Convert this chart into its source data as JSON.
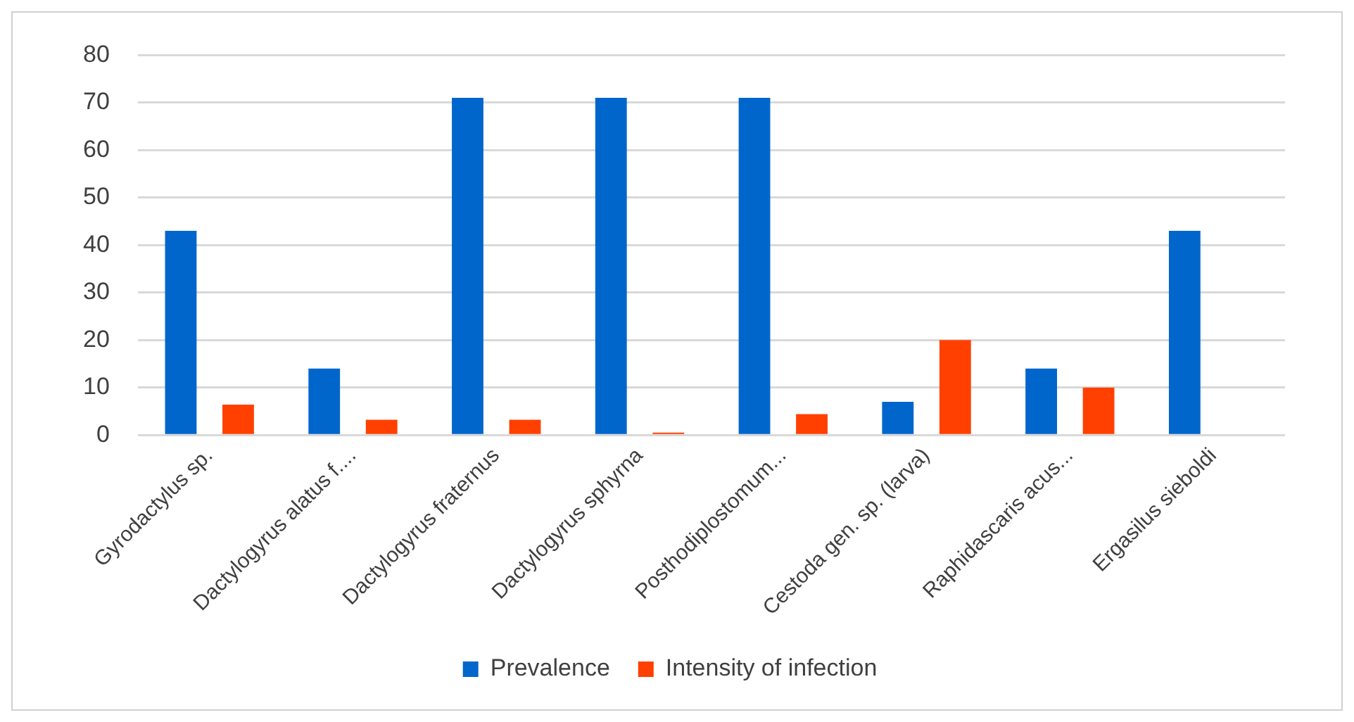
{
  "chart_data": {
    "type": "bar",
    "categories": [
      "Gyrodactylus sp.",
      "Dactylogyrus alatus f....",
      "Dactylogyrus fraternus",
      "Dactylogyrus sphyrna",
      "Posthodiplostomum...",
      "Cestoda gen. sp. (larva)",
      "Raphidascaris acus...",
      "Ergasilus sieboldi"
    ],
    "series": [
      {
        "name": "Prevalence",
        "color": "#0066cc",
        "values": [
          43,
          14,
          71,
          71,
          71,
          7,
          14,
          43
        ]
      },
      {
        "name": "Intensity of infection",
        "color": "#ff4000",
        "values": [
          6.4,
          3.2,
          3.2,
          0.5,
          4.4,
          20,
          10,
          null
        ]
      }
    ],
    "ylim": [
      0,
      80
    ],
    "yticks": [
      0,
      10,
      20,
      30,
      40,
      50,
      60,
      70,
      80
    ],
    "grid": "y",
    "legend": "bottom"
  }
}
